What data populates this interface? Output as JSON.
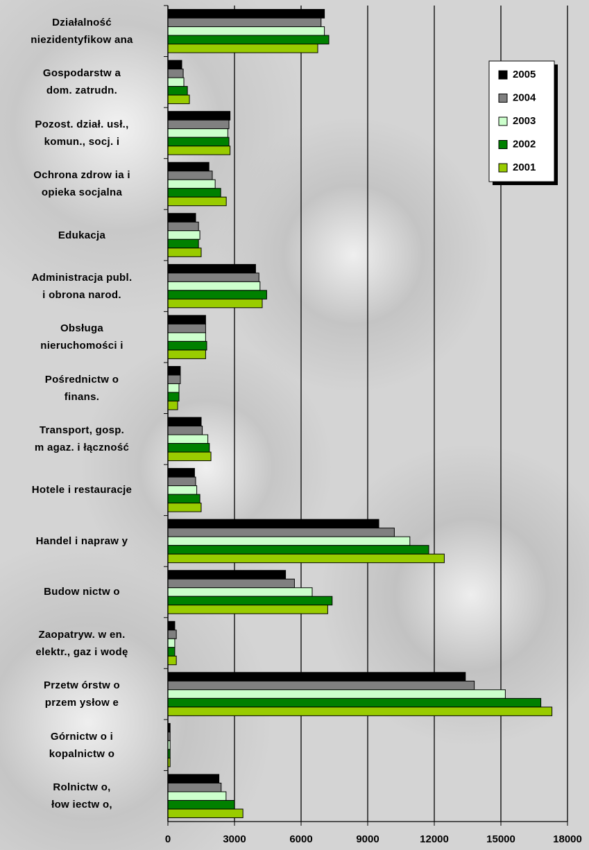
{
  "chart_data": {
    "type": "bar",
    "orientation": "horizontal",
    "categories": [
      "Działalność\nniezidentyfikow ana",
      "Gospodarstw a\ndom. zatrudn.",
      "Pozost. dział. usł.,\nkomun., socj. i",
      "Ochrona zdrow ia i\nopieka socjalna",
      "Edukacja",
      "Administracja publ.\ni obrona narod.",
      "Obsługa\nnieruchomości i",
      "Pośrednictw o\nfinans.",
      "Transport, gosp.\nm agaz. i łączność",
      "Hotele i restauracje",
      "Handel i napraw y",
      "Budow nictw o",
      "Zaopatryw. w en.\nelektr., gaz i wodę",
      "Przetw órstw o\nprzem ysłow e",
      "Górnictw o i\nkopalnictw o",
      "Rolnictw o,\nłow iectw o,"
    ],
    "series": [
      {
        "name": "2005",
        "color": "#000000",
        "values": [
          7050,
          625,
          2800,
          1850,
          1250,
          3950,
          1700,
          560,
          1500,
          1200,
          9500,
          5300,
          310,
          13400,
          100,
          2300
        ]
      },
      {
        "name": "2004",
        "color": "#808080",
        "values": [
          6900,
          690,
          2750,
          2000,
          1380,
          4100,
          1700,
          560,
          1550,
          1250,
          10200,
          5700,
          380,
          13800,
          100,
          2400
        ]
      },
      {
        "name": "2003",
        "color": "#ccffcc",
        "values": [
          7050,
          720,
          2700,
          2130,
          1440,
          4150,
          1700,
          500,
          1800,
          1300,
          10900,
          6500,
          310,
          15200,
          100,
          2620
        ]
      },
      {
        "name": "2002",
        "color": "#008000",
        "values": [
          7250,
          880,
          2750,
          2380,
          1380,
          4450,
          1750,
          500,
          1870,
          1440,
          11750,
          7400,
          310,
          16800,
          100,
          3000
        ]
      },
      {
        "name": "2001",
        "color": "#99cc00",
        "values": [
          6750,
          970,
          2800,
          2630,
          1500,
          4250,
          1700,
          440,
          1940,
          1500,
          12450,
          7200,
          380,
          17300,
          100,
          3380
        ]
      }
    ],
    "xlim": [
      0,
      18000
    ],
    "xticks": [
      0,
      3000,
      6000,
      9000,
      12000,
      15000,
      18000
    ],
    "grid": true,
    "legend": "upper right"
  }
}
